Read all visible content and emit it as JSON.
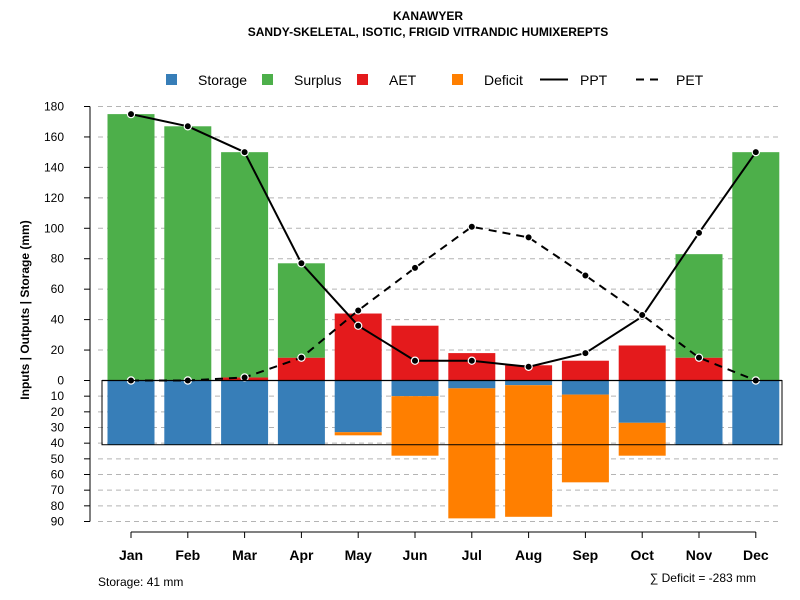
{
  "chart_data": {
    "type": "bar",
    "title": "KANAWYER",
    "subtitle": "SANDY-SKELETAL, ISOTIC, FRIGID VITRANDIC HUMIXEREPTS",
    "ylabel": "Inputs | Outputs | Storage    (mm)",
    "categories": [
      "Jan",
      "Feb",
      "Mar",
      "Apr",
      "May",
      "Jun",
      "Jul",
      "Aug",
      "Sep",
      "Oct",
      "Nov",
      "Dec"
    ],
    "upper_ylim": [
      0,
      180
    ],
    "upper_ticks": [
      "0",
      "20",
      "40",
      "60",
      "80",
      "100",
      "120",
      "140",
      "160",
      "180"
    ],
    "lower_ylim": [
      0,
      90
    ],
    "lower_ticks": [
      "10",
      "20",
      "30",
      "40",
      "50",
      "60",
      "70",
      "80",
      "90"
    ],
    "series": [
      {
        "name": "Storage",
        "color": "#377EB8",
        "region": "lower",
        "values": [
          41,
          41,
          41,
          41,
          33,
          10,
          5,
          3,
          9,
          27,
          41,
          41
        ]
      },
      {
        "name": "Surplus",
        "color": "#4DAF4A",
        "region": "upper",
        "values": [
          175,
          167,
          148,
          62,
          0,
          0,
          0,
          0,
          0,
          0,
          68,
          150
        ]
      },
      {
        "name": "AET",
        "color": "#E41A1C",
        "region": "upper",
        "values": [
          0,
          0,
          2,
          15,
          44,
          36,
          18,
          10,
          13,
          23,
          15,
          0
        ]
      },
      {
        "name": "Deficit",
        "color": "#FF7F00",
        "region": "lower",
        "values": [
          0,
          0,
          0,
          0,
          2,
          38,
          83,
          84,
          56,
          21,
          0,
          0
        ]
      },
      {
        "name": "PPT",
        "color": "#000000",
        "style": "solid",
        "region": "upper",
        "values": [
          175,
          167,
          150,
          77,
          36,
          13,
          13,
          9,
          18,
          42,
          97,
          150
        ]
      },
      {
        "name": "PET",
        "color": "#000000",
        "style": "dashed",
        "region": "upper",
        "values": [
          0,
          0,
          2,
          15,
          46,
          74,
          101,
          94,
          69,
          43,
          15,
          0
        ]
      }
    ],
    "storage_capacity": 41,
    "grid": true,
    "legend_position": "top"
  },
  "footer": {
    "storage_text": "Storage: 41 mm",
    "deficit_text": "∑ Deficit = -283 mm"
  }
}
